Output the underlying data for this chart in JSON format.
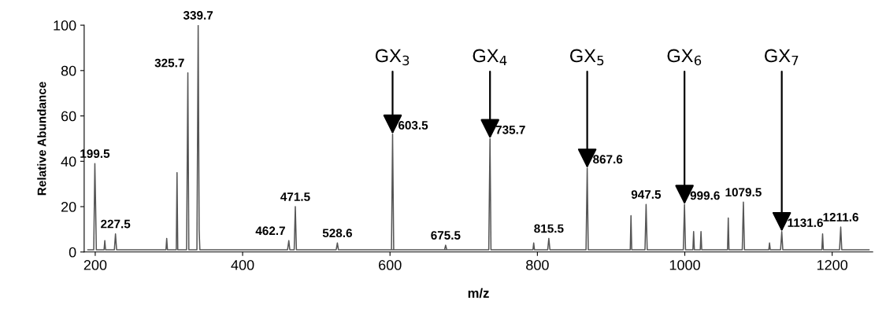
{
  "chart_data": {
    "type": "line",
    "xlabel": "m/z",
    "ylabel": "Relative Abundance",
    "xlim": [
      185,
      1255
    ],
    "ylim": [
      0,
      100
    ],
    "xticks": [
      200,
      400,
      600,
      800,
      1000,
      1200
    ],
    "yticks": [
      0,
      20,
      40,
      60,
      80,
      100
    ],
    "grid": false,
    "legend": false,
    "marker": "none",
    "line_style": "solid",
    "series": [
      {
        "color": "#555555",
        "x": [
          190,
          198,
          199.5,
          200.5,
          201.5,
          202.5,
          212,
          213,
          214,
          226,
          227.5,
          229,
          296,
          297,
          298,
          310,
          311,
          312,
          324,
          325.7,
          327,
          338,
          339.7,
          341,
          342,
          343,
          461,
          462.7,
          464,
          470,
          471.5,
          473,
          527,
          528.6,
          530,
          674,
          675.5,
          677,
          602,
          603.5,
          605,
          734,
          735.7,
          737,
          794,
          795,
          796,
          814,
          815.5,
          817,
          866,
          867.6,
          869,
          926,
          927,
          928,
          946,
          947.5,
          949,
          998,
          999.6,
          1001,
          1011,
          1012,
          1013,
          1021,
          1022,
          1023,
          1058,
          1059,
          1060,
          1078,
          1079.5,
          1081,
          1114,
          1115,
          1116,
          1130,
          1131.6,
          1133,
          1186,
          1187,
          1188,
          1210,
          1211.6,
          1213,
          1250
        ],
        "values": [
          1,
          1,
          39,
          21,
          1,
          1,
          1,
          5,
          1,
          1,
          8,
          1,
          1,
          6,
          1,
          1,
          35,
          1,
          1,
          79,
          1,
          1,
          100,
          10,
          1,
          1,
          1,
          5,
          1,
          1,
          20,
          1,
          1,
          4,
          1,
          1,
          3,
          1,
          1,
          52,
          1,
          1,
          50,
          1,
          1,
          4,
          1,
          1,
          6,
          1,
          1,
          37,
          1,
          1,
          16,
          1,
          1,
          21,
          1,
          1,
          21,
          1,
          1,
          9,
          1,
          1,
          9,
          1,
          1,
          15,
          1,
          1,
          22,
          1,
          1,
          4,
          1,
          1,
          9,
          1,
          1,
          8,
          1,
          1,
          11,
          1,
          1
        ]
      }
    ],
    "annotations": [
      {
        "text": "199.5",
        "x": 199.5,
        "y": 39
      },
      {
        "text": "227.5",
        "x": 227.5,
        "y": 8
      },
      {
        "text": "325.7",
        "x": 325.7,
        "y": 79
      },
      {
        "text": "339.7",
        "x": 339.7,
        "y": 100
      },
      {
        "text": "462.7",
        "x": 462.7,
        "y": 5
      },
      {
        "text": "471.5",
        "x": 471.5,
        "y": 20
      },
      {
        "text": "528.6",
        "x": 528.6,
        "y": 4
      },
      {
        "text": "603.5",
        "x": 603.5,
        "y": 52
      },
      {
        "text": "675.5",
        "x": 675.5,
        "y": 3
      },
      {
        "text": "735.7",
        "x": 735.7,
        "y": 50
      },
      {
        "text": "815.5",
        "x": 815.5,
        "y": 6
      },
      {
        "text": "867.6",
        "x": 867.6,
        "y": 37
      },
      {
        "text": "947.5",
        "x": 947.5,
        "y": 21
      },
      {
        "text": "999.6",
        "x": 999.6,
        "y": 21
      },
      {
        "text": "1079.5",
        "x": 1079.5,
        "y": 22
      },
      {
        "text": "1131.6",
        "x": 1131.6,
        "y": 9
      },
      {
        "text": "1211.6",
        "x": 1211.6,
        "y": 11
      },
      {
        "text": "GX$_{3}$",
        "x": 603.5,
        "y": 52
      },
      {
        "text": "GX$_{4}$",
        "x": 735.7,
        "y": 50
      },
      {
        "text": "GX$_{5}$",
        "x": 867.6,
        "y": 37
      },
      {
        "text": "GX$_{6}$",
        "x": 999.6,
        "y": 21
      },
      {
        "text": "GX$_{7}$",
        "x": 1131.6,
        "y": 9
      }
    ]
  }
}
